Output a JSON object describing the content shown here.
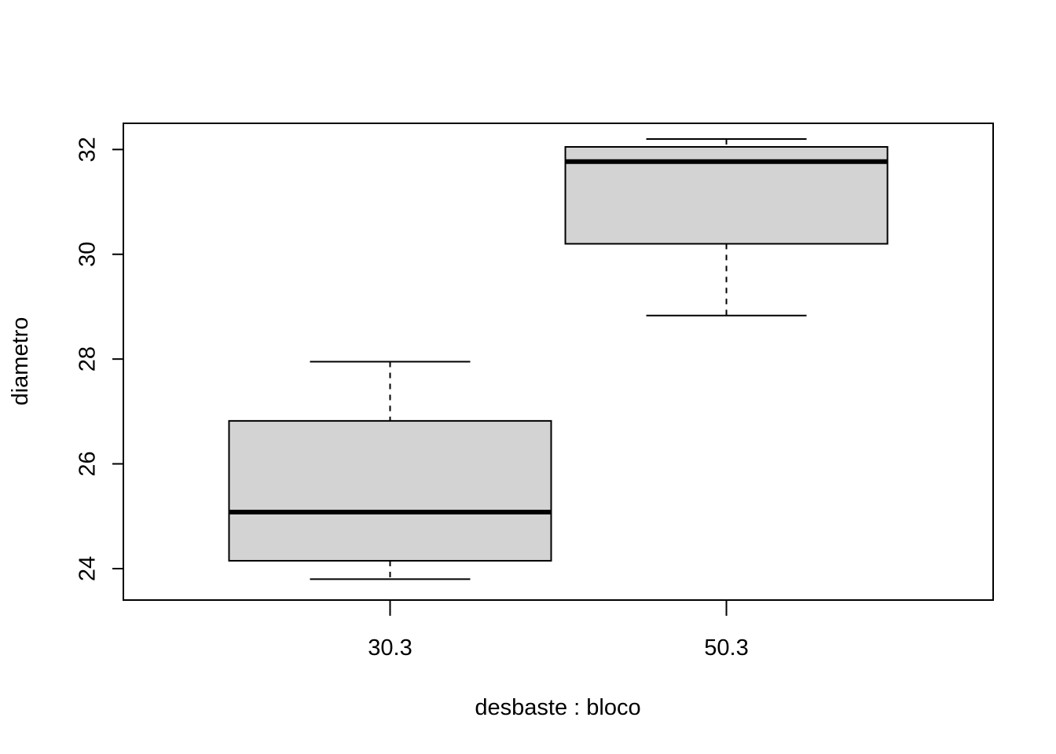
{
  "chart_data": {
    "type": "box",
    "title": "",
    "xlabel": "desbaste : bloco",
    "ylabel": "diametro",
    "ylim": [
      23.4,
      32.5
    ],
    "yticks": [
      24,
      26,
      28,
      30,
      32
    ],
    "categories": [
      "30.3",
      "50.3"
    ],
    "boxes": [
      {
        "category": "30.3",
        "min": 23.8,
        "q1": 24.15,
        "median": 25.08,
        "q3": 26.82,
        "max": 27.95
      },
      {
        "category": "50.3",
        "min": 28.83,
        "q1": 30.2,
        "median": 31.77,
        "q3": 32.05,
        "max": 32.2
      }
    ],
    "grid": false,
    "box_color": "#d3d3d3"
  }
}
